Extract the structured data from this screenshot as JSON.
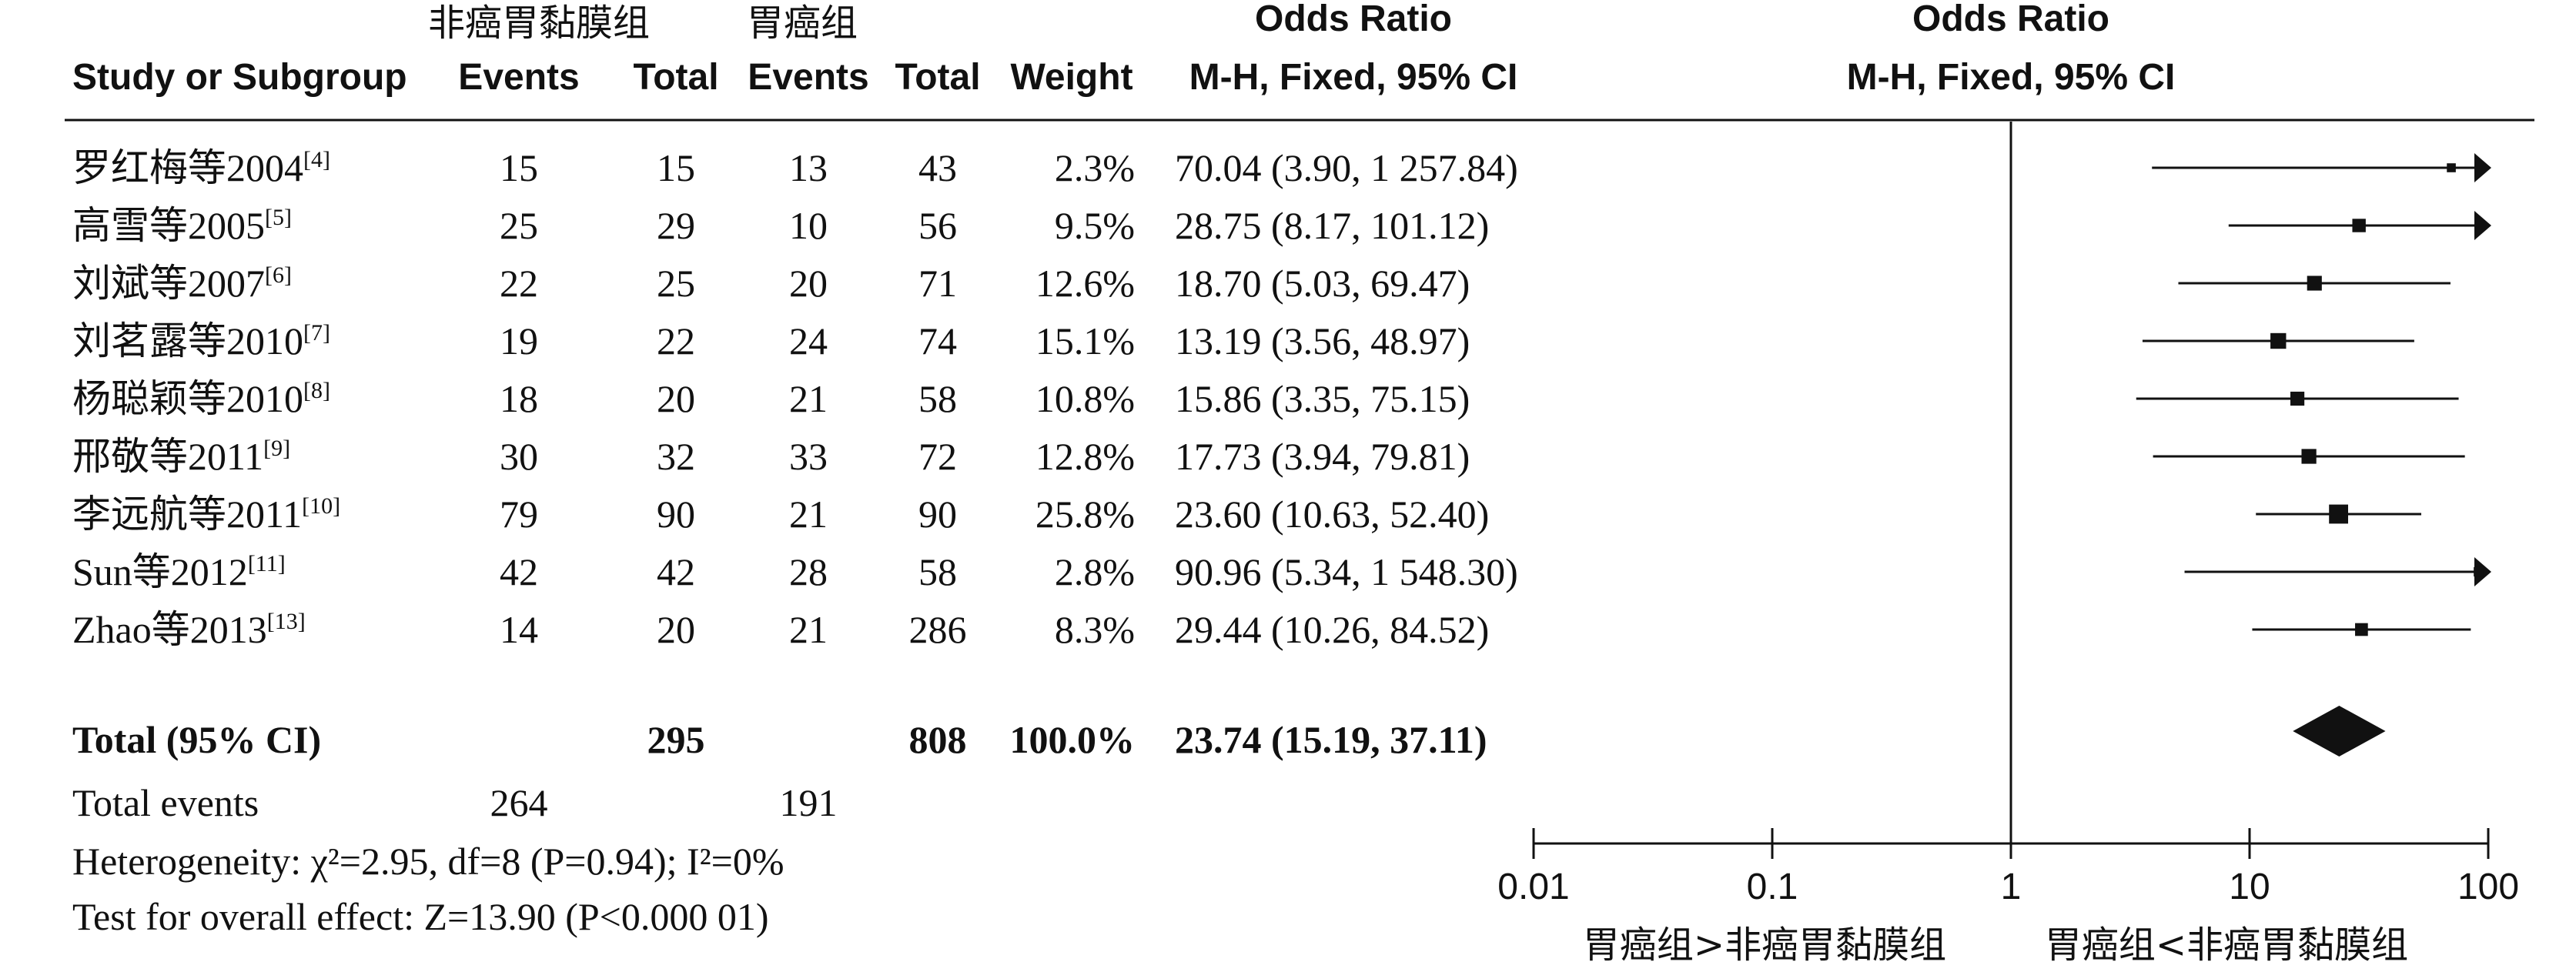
{
  "header": {
    "group1_name": "非癌胃黏膜组",
    "group2_name": "胃癌组",
    "study_col": "Study or Subgroup",
    "events_col": "Events",
    "total_col": "Total",
    "weight_col": "Weight",
    "or_title": "Odds Ratio",
    "or_method": "M-H, Fixed, 95% CI",
    "plot_title": "Odds Ratio",
    "plot_method": "M-H, Fixed, 95% CI"
  },
  "summary": {
    "total_label": "Total (95% CI)",
    "g1_total": "295",
    "g2_total": "808",
    "weight": "100.0%",
    "or_text": "23.74 (15.19, 37.11)",
    "events_label": "Total events",
    "g1_events": "264",
    "g2_events": "191",
    "heterogeneity": "Heterogeneity: χ²=2.95, df=8 (P=0.94); I²=0%",
    "overall_effect": "Test for overall effect: Z=13.90 (P<0.000 01)"
  },
  "axis": {
    "left_label": "胃癌组>非癌胃黏膜组",
    "right_label": "胃癌组<非癌胃黏膜组"
  },
  "chart_data": {
    "type": "forest",
    "scale": "log",
    "xlim": [
      0.01,
      100
    ],
    "ticks": [
      0.01,
      0.1,
      1,
      10,
      100
    ],
    "tick_labels": [
      "0.01",
      "0.1",
      "1",
      "10",
      "100"
    ],
    "null_line": 1,
    "studies": [
      {
        "name": "罗红梅等2004",
        "ref": "[4]",
        "e1": 15,
        "t1": 15,
        "e2": 13,
        "t2": 43,
        "weight": 2.3,
        "weight_text": "2.3%",
        "or": 70.04,
        "lo": 3.9,
        "hi": 1257.84,
        "ci_text": "70.04 (3.90, 1 257.84)"
      },
      {
        "name": "高雪等2005",
        "ref": "[5]",
        "e1": 25,
        "t1": 29,
        "e2": 10,
        "t2": 56,
        "weight": 9.5,
        "weight_text": "9.5%",
        "or": 28.75,
        "lo": 8.17,
        "hi": 101.12,
        "ci_text": "28.75 (8.17, 101.12)"
      },
      {
        "name": "刘斌等2007",
        "ref": "[6]",
        "e1": 22,
        "t1": 25,
        "e2": 20,
        "t2": 71,
        "weight": 12.6,
        "weight_text": "12.6%",
        "or": 18.7,
        "lo": 5.03,
        "hi": 69.47,
        "ci_text": "18.70 (5.03, 69.47)"
      },
      {
        "name": "刘茗露等2010",
        "ref": "[7]",
        "e1": 19,
        "t1": 22,
        "e2": 24,
        "t2": 74,
        "weight": 15.1,
        "weight_text": "15.1%",
        "or": 13.19,
        "lo": 3.56,
        "hi": 48.97,
        "ci_text": "13.19 (3.56, 48.97)"
      },
      {
        "name": "杨聪颖等2010",
        "ref": "[8]",
        "e1": 18,
        "t1": 20,
        "e2": 21,
        "t2": 58,
        "weight": 10.8,
        "weight_text": "10.8%",
        "or": 15.86,
        "lo": 3.35,
        "hi": 75.15,
        "ci_text": "15.86 (3.35, 75.15)"
      },
      {
        "name": "邢敬等2011",
        "ref": "[9]",
        "e1": 30,
        "t1": 32,
        "e2": 33,
        "t2": 72,
        "weight": 12.8,
        "weight_text": "12.8%",
        "or": 17.73,
        "lo": 3.94,
        "hi": 79.81,
        "ci_text": "17.73 (3.94, 79.81)"
      },
      {
        "name": "李远航等2011",
        "ref": "[10]",
        "e1": 79,
        "t1": 90,
        "e2": 21,
        "t2": 90,
        "weight": 25.8,
        "weight_text": "25.8%",
        "or": 23.6,
        "lo": 10.63,
        "hi": 52.4,
        "ci_text": "23.60 (10.63, 52.40)"
      },
      {
        "name": "Sun等2012",
        "ref": "[11]",
        "e1": 42,
        "t1": 42,
        "e2": 28,
        "t2": 58,
        "weight": 2.8,
        "weight_text": "2.8%",
        "or": 90.96,
        "lo": 5.34,
        "hi": 1548.3,
        "ci_text": "90.96 (5.34, 1 548.30)"
      },
      {
        "name": "Zhao等2013",
        "ref": "[13]",
        "e1": 14,
        "t1": 20,
        "e2": 21,
        "t2": 286,
        "weight": 8.3,
        "weight_text": "8.3%",
        "or": 29.44,
        "lo": 10.26,
        "hi": 84.52,
        "ci_text": "29.44 (10.26, 84.52)"
      }
    ],
    "pooled": {
      "or": 23.74,
      "lo": 15.19,
      "hi": 37.11
    }
  }
}
